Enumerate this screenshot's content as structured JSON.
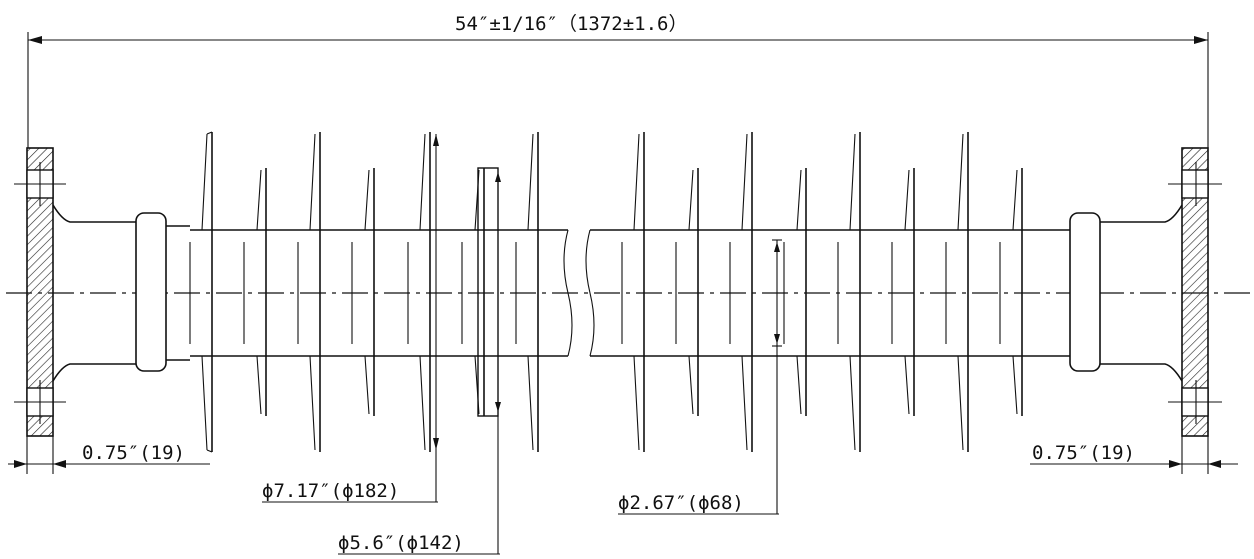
{
  "dimensions": {
    "overall_length": "54″±1/16″（1372±1.6）",
    "end_left": "0.75″(19)",
    "end_right": "0.75″(19)",
    "shed_large_dia": "ϕ7.17″(ϕ182)",
    "shed_small_dia": "ϕ5.6″(ϕ142)",
    "core_dia": "ϕ2.67″(ϕ68)"
  }
}
